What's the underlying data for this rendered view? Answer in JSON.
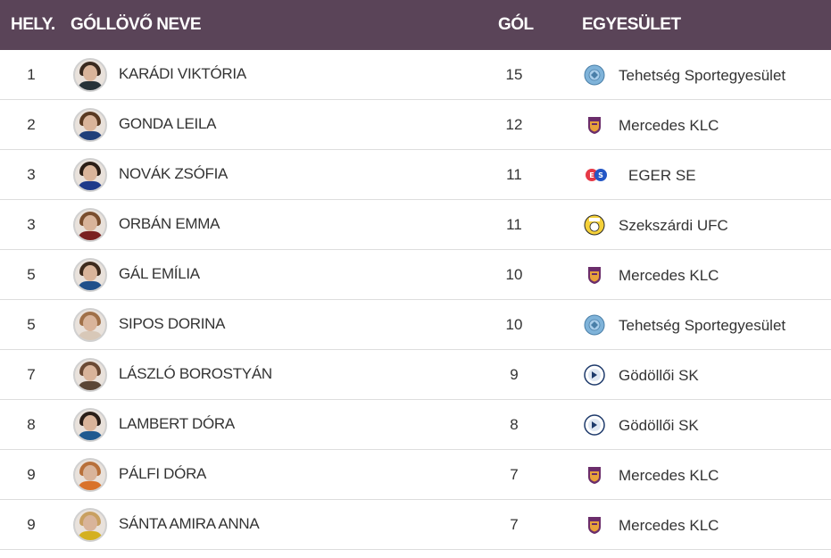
{
  "header": {
    "rank": "HELY.",
    "name": "GÓLLÖVŐ NEVE",
    "goals": "GÓL",
    "club": "EGYESÜLET"
  },
  "colors": {
    "header_bg": "#5a4458",
    "header_text": "#ffffff",
    "row_divider": "#dddddd"
  },
  "rows": [
    {
      "rank": "1",
      "name": "KARÁDI VIKTÓRIA",
      "goals": "15",
      "club": "Tehetség Sportegyesület",
      "club_logo": "tehetseg-logo"
    },
    {
      "rank": "2",
      "name": "GONDA LEILA",
      "goals": "12",
      "club": "Mercedes KLC",
      "club_logo": "mercedes-klc-logo"
    },
    {
      "rank": "3",
      "name": "NOVÁK ZSÓFIA",
      "goals": "11",
      "club": "EGER SE",
      "club_logo": "eger-se-logo"
    },
    {
      "rank": "3",
      "name": "ORBÁN EMMA",
      "goals": "11",
      "club": "Szekszárdi UFC",
      "club_logo": "szekszardi-ufc-logo"
    },
    {
      "rank": "5",
      "name": "GÁL EMÍLIA",
      "goals": "10",
      "club": "Mercedes KLC",
      "club_logo": "mercedes-klc-logo"
    },
    {
      "rank": "5",
      "name": "SIPOS DORINA",
      "goals": "10",
      "club": "Tehetség Sportegyesület",
      "club_logo": "tehetseg-logo"
    },
    {
      "rank": "7",
      "name": "LÁSZLÓ BOROSTYÁN",
      "goals": "9",
      "club": "Gödöllői SK",
      "club_logo": "godolloi-sk-logo"
    },
    {
      "rank": "8",
      "name": "LAMBERT DÓRA",
      "goals": "8",
      "club": "Gödöllői SK",
      "club_logo": "godolloi-sk-logo"
    },
    {
      "rank": "9",
      "name": "PÁLFI DÓRA",
      "goals": "7",
      "club": "Mercedes KLC",
      "club_logo": "mercedes-klc-logo"
    },
    {
      "rank": "9",
      "name": "SÁNTA AMIRA ANNA",
      "goals": "7",
      "club": "Mercedes KLC",
      "club_logo": "mercedes-klc-logo"
    }
  ]
}
